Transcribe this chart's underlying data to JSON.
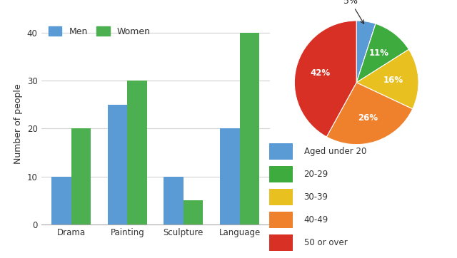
{
  "bar_categories": [
    "Drama",
    "Painting",
    "Sculpture",
    "Language"
  ],
  "men_values": [
    10,
    25,
    10,
    20
  ],
  "women_values": [
    20,
    30,
    5,
    40
  ],
  "men_color": "#5b9bd5",
  "women_color": "#4caf50",
  "ylabel": "Number of people",
  "ylim": [
    0,
    42
  ],
  "yticks": [
    0,
    10,
    20,
    30,
    40
  ],
  "bar_legend_labels": [
    "Men",
    "Women"
  ],
  "pie_values": [
    5,
    11,
    16,
    26,
    42
  ],
  "pie_labels_inside": [
    "",
    "11%",
    "16%",
    "26%",
    "42%"
  ],
  "pie_colors": [
    "#5b9bd5",
    "#3dab3d",
    "#e8c020",
    "#f0812c",
    "#d93025"
  ],
  "pie_legend_labels": [
    "Aged under 20",
    "20-29",
    "30-39",
    "40-49",
    "50 or over"
  ],
  "bg_color": "#ffffff"
}
